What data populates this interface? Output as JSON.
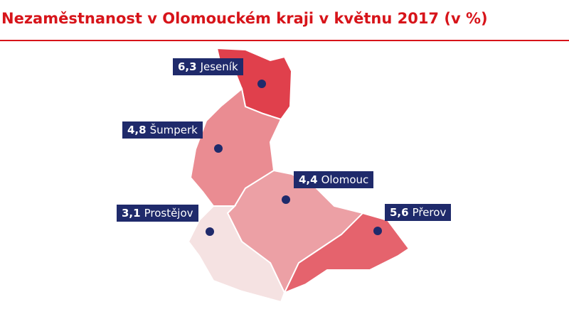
{
  "title": "Nezaměstnanost v Olomouckém kraji v květnu 2017 (v %)",
  "regions": [
    {
      "name": "Jeseník",
      "value": 6.3,
      "value_label": "6,3"
    },
    {
      "name": "Šumperk",
      "value": 4.8,
      "value_label": "4,8"
    },
    {
      "name": "Olomouc",
      "value": 4.4,
      "value_label": "4,4"
    },
    {
      "name": "Prostějov",
      "value": 3.1,
      "value_label": "3,1"
    },
    {
      "name": "Přerov",
      "value": 5.6,
      "value_label": "5,6"
    }
  ]
}
